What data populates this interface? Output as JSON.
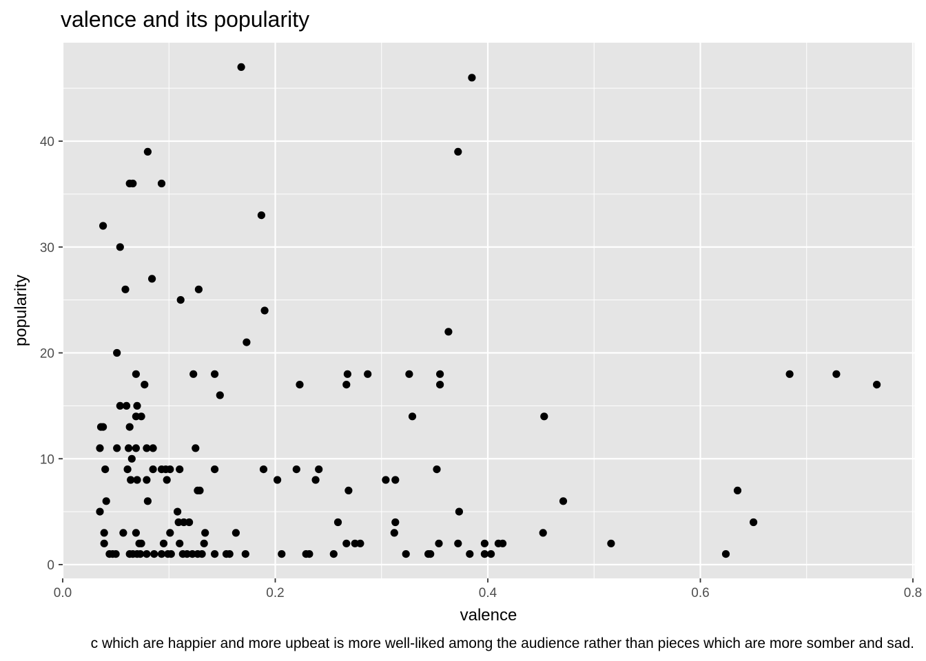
{
  "chart_data": {
    "type": "scatter",
    "title": "valence and its popularity",
    "xlabel": "valence",
    "ylabel": "popularity",
    "caption": "c which are happier and more upbeat is more well-liked among the audience rather than pieces which are more somber and sad.",
    "xlim": [
      0.0,
      0.8
    ],
    "ylim": [
      0,
      48
    ],
    "x_ticks": [
      0.0,
      0.2,
      0.4,
      0.6,
      0.8
    ],
    "x_tick_labels": [
      "0.0",
      "0.2",
      "0.4",
      "0.6",
      "0.8"
    ],
    "y_ticks": [
      0,
      10,
      20,
      30,
      40
    ],
    "y_tick_labels": [
      "0",
      "10",
      "20",
      "30",
      "40"
    ],
    "grid": true,
    "colors": {
      "panel": "#e5e5e5",
      "grid": "#ffffff",
      "point": "#000000"
    },
    "points": [
      [
        0.168,
        47
      ],
      [
        0.385,
        46
      ],
      [
        0.08,
        39
      ],
      [
        0.372,
        39
      ],
      [
        0.063,
        36
      ],
      [
        0.066,
        36
      ],
      [
        0.093,
        36
      ],
      [
        0.187,
        33
      ],
      [
        0.038,
        32
      ],
      [
        0.054,
        30
      ],
      [
        0.084,
        27
      ],
      [
        0.059,
        26
      ],
      [
        0.128,
        26
      ],
      [
        0.111,
        25
      ],
      [
        0.19,
        24
      ],
      [
        0.363,
        22
      ],
      [
        0.173,
        21
      ],
      [
        0.051,
        20
      ],
      [
        0.069,
        18
      ],
      [
        0.123,
        18
      ],
      [
        0.143,
        18
      ],
      [
        0.268,
        18
      ],
      [
        0.287,
        18
      ],
      [
        0.326,
        18
      ],
      [
        0.355,
        18
      ],
      [
        0.684,
        18
      ],
      [
        0.728,
        18
      ],
      [
        0.077,
        17
      ],
      [
        0.223,
        17
      ],
      [
        0.267,
        17
      ],
      [
        0.355,
        17
      ],
      [
        0.766,
        17
      ],
      [
        0.148,
        16
      ],
      [
        0.054,
        15
      ],
      [
        0.06,
        15
      ],
      [
        0.07,
        15
      ],
      [
        0.069,
        14
      ],
      [
        0.074,
        14
      ],
      [
        0.329,
        14
      ],
      [
        0.453,
        14
      ],
      [
        0.036,
        13
      ],
      [
        0.038,
        13
      ],
      [
        0.063,
        13
      ],
      [
        0.035,
        11
      ],
      [
        0.051,
        11
      ],
      [
        0.062,
        11
      ],
      [
        0.069,
        11
      ],
      [
        0.079,
        11
      ],
      [
        0.085,
        11
      ],
      [
        0.125,
        11
      ],
      [
        0.065,
        10
      ],
      [
        0.04,
        9
      ],
      [
        0.061,
        9
      ],
      [
        0.085,
        9
      ],
      [
        0.093,
        9
      ],
      [
        0.097,
        9
      ],
      [
        0.101,
        9
      ],
      [
        0.11,
        9
      ],
      [
        0.143,
        9
      ],
      [
        0.189,
        9
      ],
      [
        0.22,
        9
      ],
      [
        0.241,
        9
      ],
      [
        0.352,
        9
      ],
      [
        0.064,
        8
      ],
      [
        0.07,
        8
      ],
      [
        0.079,
        8
      ],
      [
        0.098,
        8
      ],
      [
        0.202,
        8
      ],
      [
        0.238,
        8
      ],
      [
        0.304,
        8
      ],
      [
        0.313,
        8
      ],
      [
        0.127,
        7
      ],
      [
        0.129,
        7
      ],
      [
        0.269,
        7
      ],
      [
        0.635,
        7
      ],
      [
        0.041,
        6
      ],
      [
        0.08,
        6
      ],
      [
        0.471,
        6
      ],
      [
        0.035,
        5
      ],
      [
        0.108,
        5
      ],
      [
        0.373,
        5
      ],
      [
        0.109,
        4
      ],
      [
        0.114,
        4
      ],
      [
        0.119,
        4
      ],
      [
        0.259,
        4
      ],
      [
        0.313,
        4
      ],
      [
        0.65,
        4
      ],
      [
        0.039,
        3
      ],
      [
        0.057,
        3
      ],
      [
        0.069,
        3
      ],
      [
        0.101,
        3
      ],
      [
        0.134,
        3
      ],
      [
        0.163,
        3
      ],
      [
        0.312,
        3
      ],
      [
        0.452,
        3
      ],
      [
        0.039,
        2
      ],
      [
        0.072,
        2
      ],
      [
        0.074,
        2
      ],
      [
        0.095,
        2
      ],
      [
        0.11,
        2
      ],
      [
        0.133,
        2
      ],
      [
        0.267,
        2
      ],
      [
        0.275,
        2
      ],
      [
        0.28,
        2
      ],
      [
        0.354,
        2
      ],
      [
        0.372,
        2
      ],
      [
        0.397,
        2
      ],
      [
        0.41,
        2
      ],
      [
        0.414,
        2
      ],
      [
        0.516,
        2
      ],
      [
        0.044,
        1
      ],
      [
        0.047,
        1
      ],
      [
        0.05,
        1
      ],
      [
        0.063,
        1
      ],
      [
        0.066,
        1
      ],
      [
        0.07,
        1
      ],
      [
        0.073,
        1
      ],
      [
        0.079,
        1
      ],
      [
        0.086,
        1
      ],
      [
        0.093,
        1
      ],
      [
        0.099,
        1
      ],
      [
        0.102,
        1
      ],
      [
        0.113,
        1
      ],
      [
        0.117,
        1
      ],
      [
        0.122,
        1
      ],
      [
        0.127,
        1
      ],
      [
        0.131,
        1
      ],
      [
        0.143,
        1
      ],
      [
        0.154,
        1
      ],
      [
        0.157,
        1
      ],
      [
        0.172,
        1
      ],
      [
        0.206,
        1
      ],
      [
        0.229,
        1
      ],
      [
        0.232,
        1
      ],
      [
        0.255,
        1
      ],
      [
        0.323,
        1
      ],
      [
        0.344,
        1
      ],
      [
        0.346,
        1
      ],
      [
        0.383,
        1
      ],
      [
        0.397,
        1
      ],
      [
        0.403,
        1
      ],
      [
        0.624,
        1
      ]
    ]
  }
}
